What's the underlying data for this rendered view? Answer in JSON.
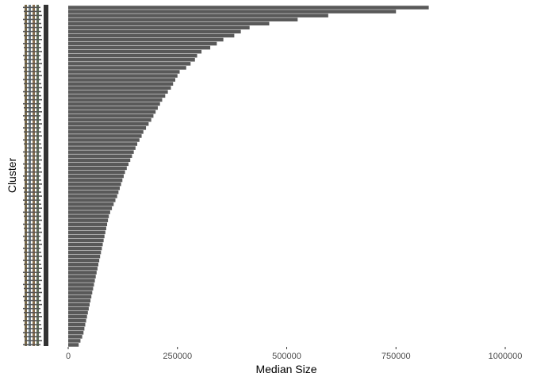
{
  "chart_data": {
    "type": "bar",
    "orientation": "horizontal",
    "xlabel": "Median Size",
    "ylabel": "Cluster",
    "xlim": [
      0,
      1000000
    ],
    "x_ticks": [
      0,
      250000,
      500000,
      750000,
      1000000
    ],
    "x_tick_labels": [
      "0",
      "250000",
      "500000",
      "750000",
      "1000000"
    ],
    "grid": false,
    "bar_color": "#595959",
    "values": [
      825000,
      750000,
      595000,
      525000,
      460000,
      415000,
      395000,
      380000,
      355000,
      340000,
      325000,
      305000,
      295000,
      290000,
      280000,
      270000,
      255000,
      250000,
      245000,
      240000,
      235000,
      228000,
      222000,
      215000,
      210000,
      205000,
      200000,
      195000,
      190000,
      184000,
      178000,
      172000,
      168000,
      163000,
      158000,
      154000,
      150000,
      146000,
      142000,
      138000,
      134000,
      130000,
      127000,
      124000,
      121000,
      118000,
      115000,
      112000,
      108000,
      104000,
      100000,
      96000,
      93000,
      91000,
      89000,
      87000,
      85000,
      83000,
      81000,
      79000,
      77000,
      75000,
      73000,
      71000,
      69000,
      67000,
      65000,
      63000,
      61000,
      59000,
      57000,
      55000,
      53000,
      51000,
      49000,
      47000,
      45000,
      43000,
      41000,
      39000,
      37000,
      35000,
      32000,
      28000,
      24000
    ]
  }
}
